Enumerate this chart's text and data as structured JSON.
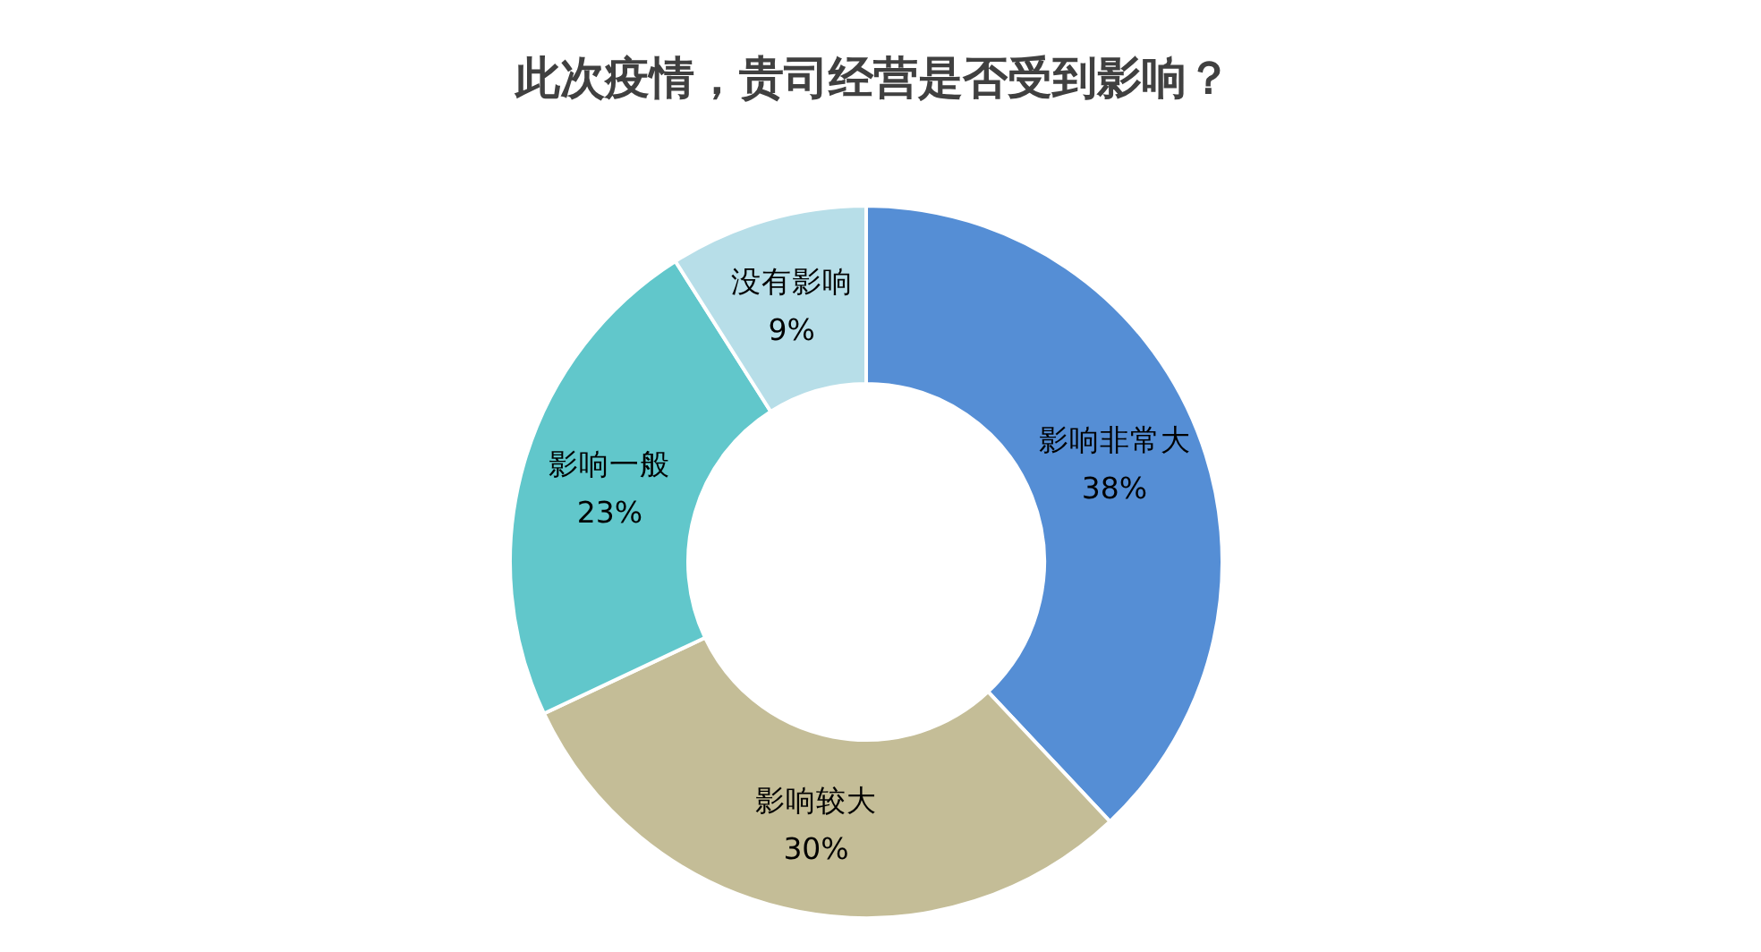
{
  "chart_data": {
    "type": "donut",
    "title": "此次疫情，贵司经营是否受到影响？",
    "categories": [
      "影响非常大",
      "影响较大",
      "影响一般",
      "没有影响"
    ],
    "values": [
      38,
      30,
      23,
      9
    ],
    "colors": [
      "#558ed5",
      "#c4bd97",
      "#61c7cb",
      "#b7dee8"
    ],
    "value_labels": [
      "38%",
      "30%",
      "23%",
      "9%"
    ]
  }
}
